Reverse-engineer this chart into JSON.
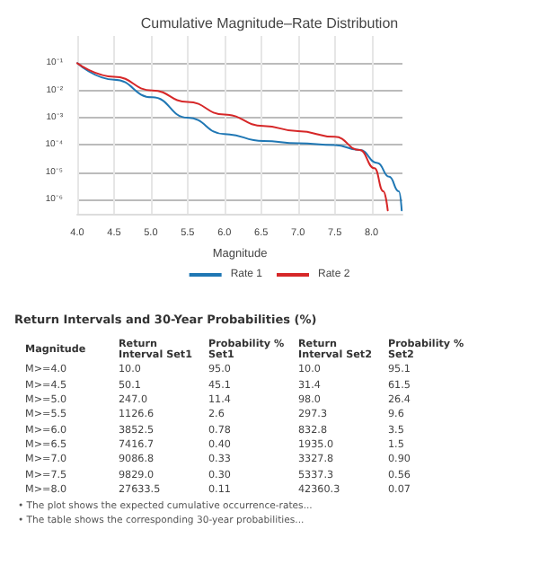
{
  "chart_data": [
    {
      "type": "line",
      "title": "Cumulative Magnitude–Rate Distribution",
      "xlabel": "Magnitude",
      "xlim": [
        4,
        8.42
      ],
      "xticks": [
        {
          "value": 4,
          "label": "4.0"
        },
        4.5,
        {
          "value": 5,
          "label": "5.0"
        },
        5.5,
        {
          "value": 6,
          "label": "6.0"
        },
        6.5,
        {
          "value": 7,
          "label": "7.0"
        },
        7.5,
        {
          "value": 8,
          "label": "8.0"
        }
      ],
      "ylim": [
        3e-07,
        1
      ],
      "yticks": [
        {
          "value": 0.1,
          "label": "10⁻¹"
        },
        {
          "value": 0.01,
          "label": "10⁻²"
        },
        {
          "value": 0.001,
          "label": "10⁻³"
        },
        {
          "value": 0.0001,
          "label": "10⁻⁴"
        },
        {
          "value": 1e-05,
          "label": "10⁻⁵"
        },
        {
          "value": 1e-06,
          "label": "10⁻⁶"
        }
      ],
      "log": "y",
      "grid": true,
      "legend": "bottom",
      "marker": "none",
      "line_style": "solid",
      "series": [
        {
          "name": "Rate 1",
          "color": "#1f77b4",
          "x": [
            4.0,
            4.5,
            5.02,
            5.5,
            6.0,
            6.53,
            7.0,
            7.5,
            7.84,
            8.08,
            8.24,
            8.37,
            8.41
          ],
          "values": [
            0.1,
            0.025,
            0.0056,
            0.001,
            0.00025,
            0.00014,
            0.000115,
            0.0001,
            6.5e-05,
            2.2e-05,
            6.8e-06,
            2e-06,
            4e-07
          ]
        },
        {
          "name": "Rate 2",
          "color": "#d62728",
          "x": [
            4.0,
            4.5,
            5.02,
            5.5,
            6.0,
            6.53,
            7.0,
            7.5,
            7.84,
            8.04,
            8.16,
            8.22
          ],
          "values": [
            0.1,
            0.032,
            0.01,
            0.0038,
            0.0013,
            0.0005,
            0.00032,
            0.0002,
            6.5e-05,
            1.4e-05,
            2e-06,
            4e-07
          ]
        }
      ]
    },
    {
      "type": "other",
      "title": "Return Intervals and 30-Year Probabilities (%)",
      "ylabel": "Magnitude",
      "categories": [
        "Return Interval Set1",
        "Probability % Set1",
        "Return Interval Set2",
        "Probability % Set2"
      ],
      "y_categories": [
        "M>=4.0",
        "M>=4.5",
        "M>=5.0",
        "M>=5.5",
        "M>=6.0",
        "M>=6.5",
        "M>=7.0",
        "M>=7.5",
        "M>=8.0"
      ],
      "cell_labels": [
        [
          "10.0",
          "95.0",
          "10.0",
          "95.1"
        ],
        [
          "50.1",
          "45.1",
          "31.4",
          "61.5"
        ],
        [
          "247.0",
          "11.4",
          "98.0",
          "26.4"
        ],
        [
          "1126.6",
          "2.6",
          "297.3",
          "9.6"
        ],
        [
          "3852.5",
          "0.78",
          "832.8",
          "3.5"
        ],
        [
          "7416.7",
          "0.40",
          "1935.0",
          "1.5"
        ],
        [
          "9086.8",
          "0.33",
          "3327.8",
          "0.90"
        ],
        [
          "9829.0",
          "0.30",
          "5337.3",
          "0.56"
        ],
        [
          "27633.5",
          "0.11",
          "42360.3",
          "0.07"
        ]
      ],
      "annotations": [
        "• The plot shows the expected cumulative occurrence-rates...",
        "• The table shows the corresponding 30-year probabilities..."
      ]
    }
  ]
}
